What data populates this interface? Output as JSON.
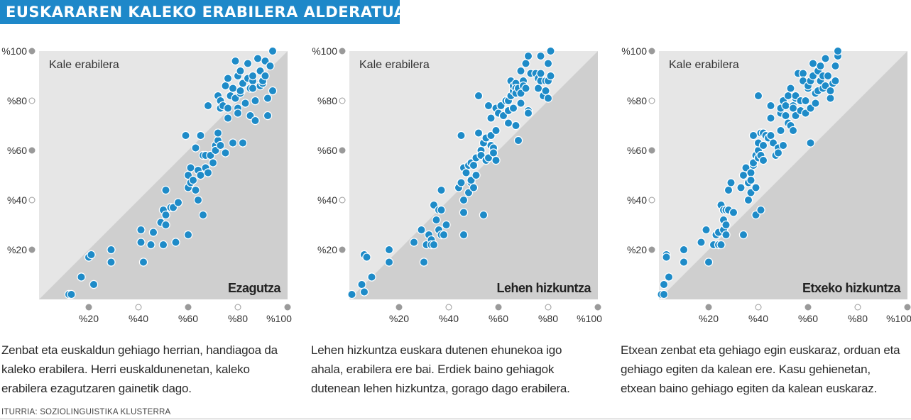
{
  "header": {
    "title": "EUSKARAREN KALEKO ERABILERA ALDERATUA"
  },
  "footer": {
    "source": "ITURRIA: SOZIOLINGUISTIKA KLUSTERRA"
  },
  "colors": {
    "accent": "#1e88c9",
    "point": "#1e8bc8",
    "upper_bg": "#e6e6e6",
    "lower_bg": "#cfcfcf"
  },
  "chart_data": [
    {
      "type": "scatter",
      "panel_label": "Kale erabilera",
      "corner_label": "Ezagutza",
      "caption": "Zenbat eta euskaldun gehiago herrian, handiagoa da kaleko erabilera. Herri euskaldunenetan, kaleko erabilera ezagutzaren gainetik dago.",
      "xlim": [
        0,
        100
      ],
      "ylim": [
        0,
        100
      ],
      "x_ticks": [
        "%20",
        "%40",
        "%60",
        "%80",
        "%100"
      ],
      "y_ticks": [
        "%100",
        "%80",
        "%60",
        "%40",
        "%20"
      ],
      "points": [
        [
          12,
          2
        ],
        [
          13,
          2
        ],
        [
          17,
          9
        ],
        [
          20,
          17
        ],
        [
          21,
          18
        ],
        [
          22,
          6
        ],
        [
          29,
          20
        ],
        [
          29,
          15
        ],
        [
          41,
          28
        ],
        [
          41,
          23
        ],
        [
          42,
          15
        ],
        [
          45,
          22
        ],
        [
          46,
          27
        ],
        [
          49,
          31
        ],
        [
          50,
          22
        ],
        [
          50,
          36
        ],
        [
          51,
          44
        ],
        [
          51,
          34
        ],
        [
          51,
          30
        ],
        [
          53,
          37
        ],
        [
          54,
          37
        ],
        [
          55,
          23
        ],
        [
          56,
          39
        ],
        [
          59,
          66
        ],
        [
          60,
          50
        ],
        [
          60,
          45
        ],
        [
          60,
          26
        ],
        [
          61,
          53
        ],
        [
          61,
          47
        ],
        [
          62,
          48
        ],
        [
          63,
          61
        ],
        [
          63,
          44
        ],
        [
          64,
          52
        ],
        [
          64,
          40
        ],
        [
          65,
          50
        ],
        [
          65,
          66
        ],
        [
          66,
          34
        ],
        [
          66,
          58
        ],
        [
          67,
          53
        ],
        [
          67,
          58
        ],
        [
          68,
          51
        ],
        [
          68,
          78
        ],
        [
          69,
          58
        ],
        [
          70,
          55
        ],
        [
          71,
          62
        ],
        [
          71,
          60
        ],
        [
          72,
          64
        ],
        [
          72,
          82
        ],
        [
          72,
          67
        ],
        [
          73,
          62
        ],
        [
          73,
          80
        ],
        [
          73,
          77
        ],
        [
          74,
          78
        ],
        [
          75,
          86
        ],
        [
          75,
          59
        ],
        [
          76,
          73
        ],
        [
          76,
          89
        ],
        [
          76,
          77
        ],
        [
          77,
          82
        ],
        [
          78,
          85
        ],
        [
          78,
          63
        ],
        [
          79,
          96
        ],
        [
          79,
          81
        ],
        [
          80,
          77
        ],
        [
          80,
          90
        ],
        [
          80,
          75
        ],
        [
          81,
          92
        ],
        [
          81,
          83
        ],
        [
          81,
          84
        ],
        [
          82,
          87
        ],
        [
          82,
          63
        ],
        [
          83,
          79
        ],
        [
          84,
          89
        ],
        [
          84,
          95
        ],
        [
          85,
          74
        ],
        [
          85,
          85
        ],
        [
          86,
          88
        ],
        [
          86,
          90
        ],
        [
          86,
          85
        ],
        [
          87,
          72
        ],
        [
          87,
          80
        ],
        [
          88,
          97
        ],
        [
          89,
          86
        ],
        [
          89,
          92
        ],
        [
          90,
          87
        ],
        [
          90,
          88
        ],
        [
          91,
          96
        ],
        [
          91,
          90
        ],
        [
          92,
          81
        ],
        [
          92,
          74
        ],
        [
          93,
          94
        ],
        [
          94,
          84
        ],
        [
          94,
          100
        ]
      ]
    },
    {
      "type": "scatter",
      "panel_label": "Kale erabilera",
      "corner_label": "Lehen hizkuntza",
      "caption": "Lehen hizkuntza euskara dutenen ehunekoa igo ahala, erabilera ere bai. Erdiek baino gehiagok dutenean lehen hizkuntza, gorago dago erabilera.",
      "xlim": [
        0,
        100
      ],
      "ylim": [
        0,
        100
      ],
      "x_ticks": [
        "%20",
        "%40",
        "%60",
        "%80",
        "%100"
      ],
      "y_ticks": [
        "%100",
        "%80",
        "%60",
        "%40",
        "%20"
      ],
      "points": [
        [
          1,
          2
        ],
        [
          5,
          6
        ],
        [
          6,
          18
        ],
        [
          6,
          3
        ],
        [
          7,
          17
        ],
        [
          9,
          9
        ],
        [
          16,
          20
        ],
        [
          16,
          15
        ],
        [
          26,
          23
        ],
        [
          29,
          28
        ],
        [
          30,
          15
        ],
        [
          31,
          22
        ],
        [
          32,
          26
        ],
        [
          33,
          24
        ],
        [
          33,
          22
        ],
        [
          34,
          38
        ],
        [
          34,
          22
        ],
        [
          35,
          32
        ],
        [
          36,
          36
        ],
        [
          36,
          28
        ],
        [
          37,
          44
        ],
        [
          37,
          36
        ],
        [
          37,
          26
        ],
        [
          38,
          26
        ],
        [
          39,
          30
        ],
        [
          44,
          45
        ],
        [
          45,
          66
        ],
        [
          45,
          47
        ],
        [
          46,
          35
        ],
        [
          46,
          53
        ],
        [
          46,
          40
        ],
        [
          46,
          26
        ],
        [
          47,
          51
        ],
        [
          48,
          43
        ],
        [
          48,
          54
        ],
        [
          49,
          55
        ],
        [
          49,
          47
        ],
        [
          49,
          48
        ],
        [
          50,
          54
        ],
        [
          50,
          45
        ],
        [
          51,
          57
        ],
        [
          51,
          50
        ],
        [
          52,
          82
        ],
        [
          52,
          67
        ],
        [
          53,
          60
        ],
        [
          53,
          58
        ],
        [
          54,
          34
        ],
        [
          54,
          63
        ],
        [
          55,
          65
        ],
        [
          55,
          56
        ],
        [
          56,
          57
        ],
        [
          56,
          78
        ],
        [
          57,
          62
        ],
        [
          57,
          66
        ],
        [
          57,
          73
        ],
        [
          58,
          61
        ],
        [
          58,
          59
        ],
        [
          59,
          77
        ],
        [
          59,
          68
        ],
        [
          59,
          56
        ],
        [
          60,
          75
        ],
        [
          61,
          78
        ],
        [
          62,
          74
        ],
        [
          63,
          80
        ],
        [
          64,
          80
        ],
        [
          64,
          76
        ],
        [
          64,
          71
        ],
        [
          65,
          82
        ],
        [
          65,
          88
        ],
        [
          66,
          84
        ],
        [
          66,
          86
        ],
        [
          66,
          77
        ],
        [
          67,
          87
        ],
        [
          67,
          85
        ],
        [
          67,
          83
        ],
        [
          67,
          70
        ],
        [
          68,
          85
        ],
        [
          68,
          64
        ],
        [
          69,
          92
        ],
        [
          69,
          79
        ],
        [
          69,
          83
        ],
        [
          70,
          88
        ],
        [
          70,
          86
        ],
        [
          71,
          95
        ],
        [
          71,
          85
        ],
        [
          72,
          76
        ],
        [
          72,
          75
        ],
        [
          72,
          98
        ],
        [
          73,
          91
        ],
        [
          75,
          91
        ],
        [
          76,
          85
        ],
        [
          76,
          89
        ],
        [
          77,
          98
        ],
        [
          77,
          88
        ],
        [
          77,
          91
        ],
        [
          78,
          82
        ],
        [
          79,
          84
        ],
        [
          79,
          88
        ],
        [
          80,
          95
        ],
        [
          80,
          81
        ],
        [
          80,
          88
        ],
        [
          81,
          90
        ],
        [
          81,
          100
        ]
      ]
    },
    {
      "type": "scatter",
      "panel_label": "Kale erabilera",
      "corner_label": "Etxeko hizkuntza",
      "caption": "Etxean zenbat eta gehiago egin euskaraz, orduan eta gehiago egiten da kalean ere. Kasu gehienetan, etxean baino gehiago egiten da kalean euskaraz.",
      "xlim": [
        0,
        100
      ],
      "ylim": [
        0,
        100
      ],
      "x_ticks": [
        "%20",
        "%40",
        "%60",
        "%80",
        "%100"
      ],
      "y_ticks": [
        "%100",
        "%80",
        "%60",
        "%40",
        "%20"
      ],
      "points": [
        [
          1,
          2
        ],
        [
          2,
          6
        ],
        [
          2,
          2
        ],
        [
          3,
          18
        ],
        [
          3,
          17
        ],
        [
          4,
          9
        ],
        [
          10,
          20
        ],
        [
          10,
          15
        ],
        [
          17,
          23
        ],
        [
          19,
          28
        ],
        [
          20,
          15
        ],
        [
          22,
          22
        ],
        [
          23,
          26
        ],
        [
          24,
          27
        ],
        [
          24,
          22
        ],
        [
          25,
          38
        ],
        [
          25,
          22
        ],
        [
          26,
          32
        ],
        [
          26,
          36
        ],
        [
          26,
          28
        ],
        [
          27,
          36
        ],
        [
          27,
          26
        ],
        [
          27,
          30
        ],
        [
          28,
          44
        ],
        [
          28,
          36
        ],
        [
          29,
          47
        ],
        [
          30,
          35
        ],
        [
          33,
          45
        ],
        [
          34,
          50
        ],
        [
          34,
          26
        ],
        [
          35,
          53
        ],
        [
          36,
          47
        ],
        [
          36,
          40
        ],
        [
          37,
          51
        ],
        [
          37,
          48
        ],
        [
          37,
          43
        ],
        [
          38,
          54
        ],
        [
          38,
          55
        ],
        [
          38,
          66
        ],
        [
          39,
          34
        ],
        [
          39,
          45
        ],
        [
          39,
          58
        ],
        [
          40,
          57
        ],
        [
          40,
          60
        ],
        [
          40,
          63
        ],
        [
          40,
          82
        ],
        [
          41,
          58
        ],
        [
          41,
          36
        ],
        [
          41,
          67
        ],
        [
          42,
          62
        ],
        [
          42,
          56
        ],
        [
          42,
          67
        ],
        [
          43,
          66
        ],
        [
          44,
          65
        ],
        [
          45,
          73
        ],
        [
          45,
          66
        ],
        [
          45,
          78
        ],
        [
          46,
          63
        ],
        [
          47,
          58
        ],
        [
          48,
          61
        ],
        [
          48,
          59
        ],
        [
          49,
          75
        ],
        [
          49,
          68
        ],
        [
          49,
          77
        ],
        [
          50,
          62
        ],
        [
          50,
          80
        ],
        [
          51,
          78
        ],
        [
          51,
          74
        ],
        [
          52,
          71
        ],
        [
          52,
          82
        ],
        [
          53,
          85
        ],
        [
          53,
          70
        ],
        [
          54,
          78
        ],
        [
          54,
          68
        ],
        [
          54,
          77
        ],
        [
          55,
          74
        ],
        [
          55,
          81
        ],
        [
          55,
          82
        ],
        [
          56,
          91
        ],
        [
          57,
          76
        ],
        [
          57,
          80
        ],
        [
          58,
          91
        ],
        [
          58,
          88
        ],
        [
          59,
          75
        ],
        [
          59,
          80
        ],
        [
          60,
          85
        ],
        [
          60,
          86
        ],
        [
          61,
          63
        ],
        [
          61,
          77
        ],
        [
          61,
          88
        ],
        [
          62,
          90
        ],
        [
          62,
          95
        ],
        [
          63,
          79
        ],
        [
          63,
          83
        ],
        [
          64,
          84
        ],
        [
          64,
          92
        ],
        [
          65,
          88
        ],
        [
          65,
          94
        ],
        [
          66,
          85
        ],
        [
          66,
          90
        ],
        [
          67,
          86
        ],
        [
          67,
          97
        ],
        [
          68,
          90
        ],
        [
          69,
          81
        ],
        [
          69,
          84
        ],
        [
          70,
          87
        ],
        [
          71,
          94
        ],
        [
          71,
          88
        ],
        [
          72,
          98
        ],
        [
          72,
          100
        ]
      ]
    }
  ]
}
